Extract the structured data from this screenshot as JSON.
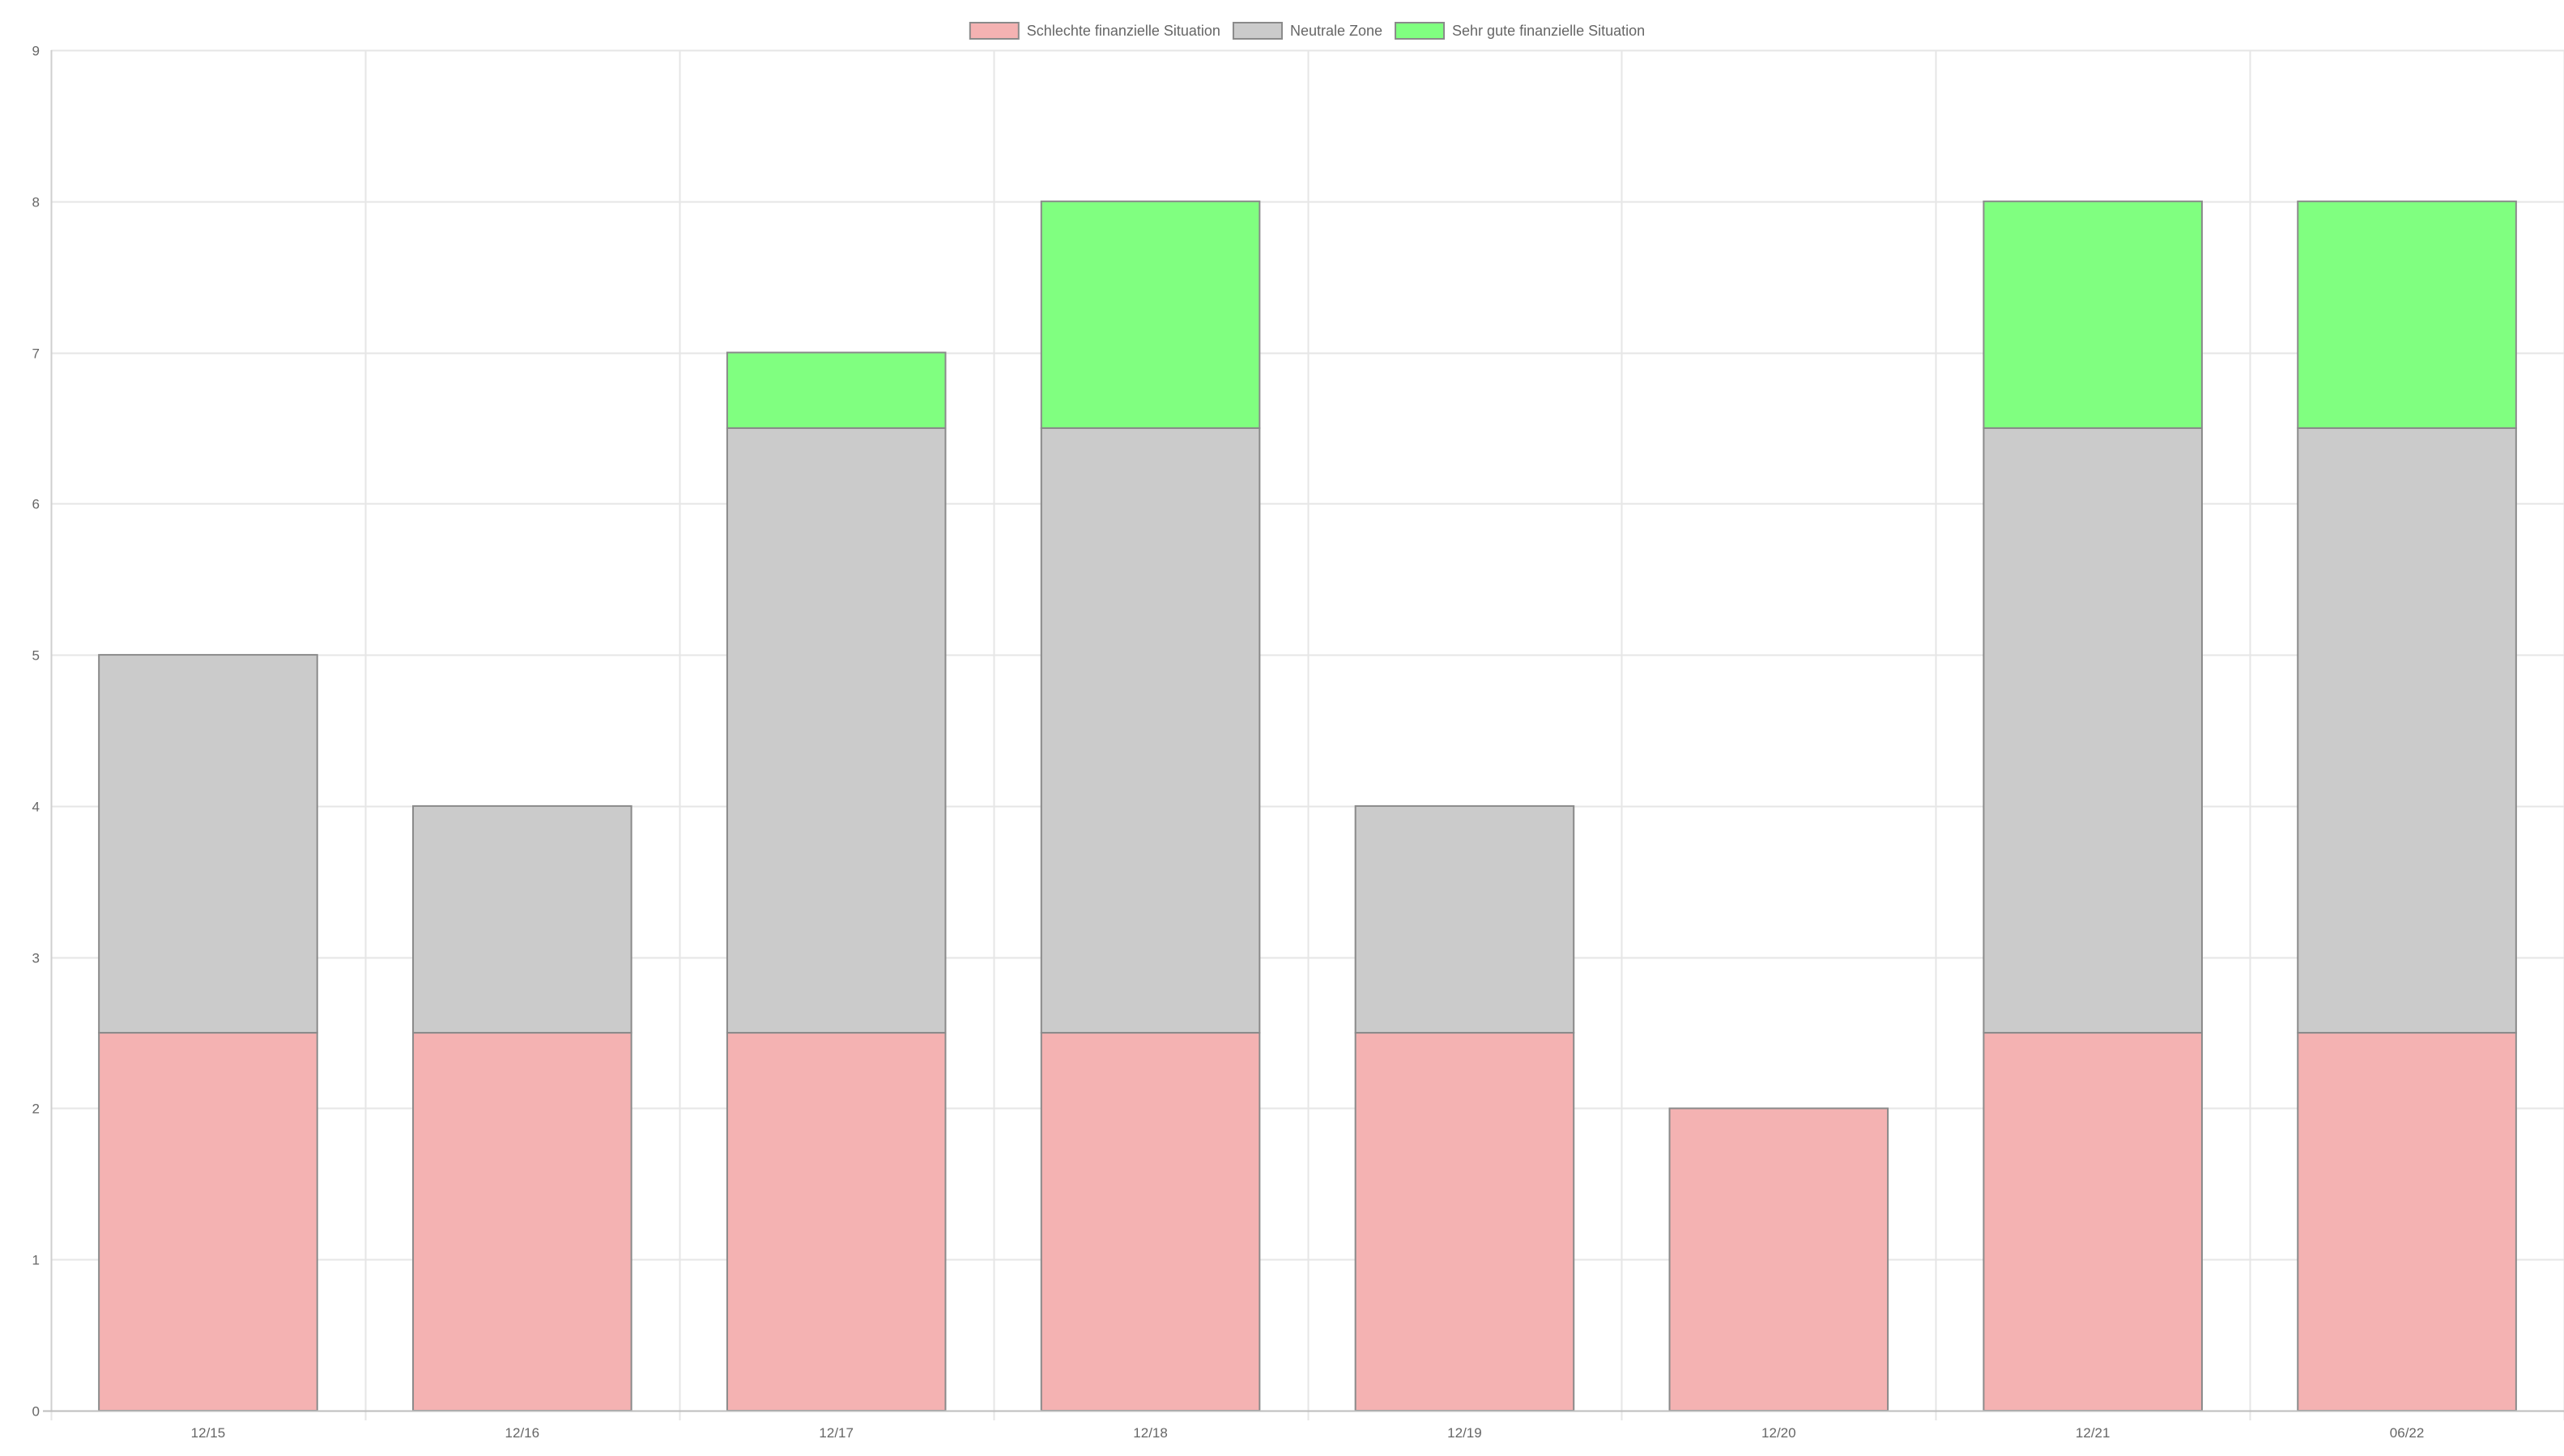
{
  "chart_data": {
    "type": "bar",
    "stacked": true,
    "categories": [
      "12/15",
      "12/16",
      "12/17",
      "12/18",
      "12/19",
      "12/20",
      "12/21",
      "06/22"
    ],
    "series": [
      {
        "name": "Schlechte finanzielle Situation",
        "color": "#f4b2b2",
        "values": [
          2.5,
          2.5,
          2.5,
          2.5,
          2.5,
          2,
          2.5,
          2.5
        ]
      },
      {
        "name": "Neutrale Zone",
        "color": "#cbcbcb",
        "values": [
          2.5,
          1.5,
          4,
          4,
          1.5,
          0,
          4,
          4
        ]
      },
      {
        "name": "Sehr gute finanzielle Situation",
        "color": "#80ff80",
        "values": [
          0,
          0,
          0.5,
          1.5,
          0,
          0,
          1.5,
          1.5
        ]
      }
    ],
    "yticks": [
      "0",
      "1",
      "2",
      "3",
      "4",
      "5",
      "6",
      "7",
      "8",
      "9"
    ],
    "ylim": [
      0,
      9
    ],
    "grid": true,
    "legend_position": "top-center",
    "border_color": "#8a8a8a",
    "grid_color": "#e6e6e6",
    "text_color": "#666666"
  }
}
